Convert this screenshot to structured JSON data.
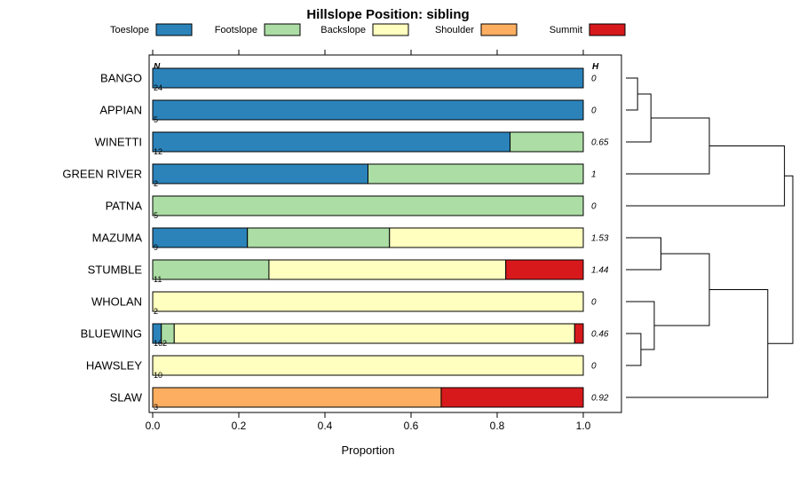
{
  "chart_data": {
    "type": "bar",
    "orientation": "horizontal",
    "stacked": true,
    "title": "Hillslope Position: sibling",
    "xlabel": "Proportion",
    "xlim": [
      0,
      1
    ],
    "xticks": [
      0,
      0.2,
      0.4,
      0.6,
      0.8,
      1.0
    ],
    "xtick_labels": [
      "0.0",
      "0.2",
      "0.4",
      "0.6",
      "0.8",
      "1.0"
    ],
    "grid": false,
    "legend_position": "top",
    "categories": [
      "Toeslope",
      "Footslope",
      "Backslope",
      "Shoulder",
      "Summit"
    ],
    "colors": [
      "#2B83BA",
      "#ABDDA4",
      "#FFFFBF",
      "#FDAE61",
      "#D7191C"
    ],
    "col_headers": {
      "left": "N",
      "right": "H"
    },
    "rows": [
      {
        "label": "BANGO",
        "n": 24,
        "h": "0",
        "proportions": [
          1,
          0,
          0,
          0,
          0
        ]
      },
      {
        "label": "APPIAN",
        "n": 5,
        "h": "0",
        "proportions": [
          1,
          0,
          0,
          0,
          0
        ]
      },
      {
        "label": "WINETTI",
        "n": 12,
        "h": "0.65",
        "proportions": [
          0.83,
          0.17,
          0,
          0,
          0
        ]
      },
      {
        "label": "GREEN RIVER",
        "n": 2,
        "h": "1",
        "proportions": [
          0.5,
          0.5,
          0,
          0,
          0
        ]
      },
      {
        "label": "PATNA",
        "n": 5,
        "h": "0",
        "proportions": [
          0,
          1,
          0,
          0,
          0
        ]
      },
      {
        "label": "MAZUMA",
        "n": 9,
        "h": "1.53",
        "proportions": [
          0.22,
          0.33,
          0.45,
          0,
          0
        ]
      },
      {
        "label": "STUMBLE",
        "n": 11,
        "h": "1.44",
        "proportions": [
          0,
          0.27,
          0.55,
          0,
          0.18
        ]
      },
      {
        "label": "WHOLAN",
        "n": 2,
        "h": "0",
        "proportions": [
          0,
          0,
          1,
          0,
          0
        ]
      },
      {
        "label": "BLUEWING",
        "n": 162,
        "h": "0.46",
        "proportions": [
          0.02,
          0.03,
          0.93,
          0,
          0.02
        ]
      },
      {
        "label": "HAWSLEY",
        "n": 10,
        "h": "0",
        "proportions": [
          0,
          0,
          1,
          0,
          0
        ]
      },
      {
        "label": "SLAW",
        "n": 3,
        "h": "0.92",
        "proportions": [
          0,
          0,
          0,
          0.67,
          0.33
        ]
      }
    ],
    "dendrogram": {
      "note": "right-side cluster tree; leaves L0-L10 are rows top to bottom, h is normalized merge distance 0-1",
      "merges": [
        {
          "a": "L0",
          "b": "L1",
          "h": 0.07
        },
        {
          "a": "M0",
          "b": "L2",
          "h": 0.15
        },
        {
          "a": "M1",
          "b": "L3",
          "h": 0.5
        },
        {
          "a": "M2",
          "b": "L4",
          "h": 0.95
        },
        {
          "a": "L5",
          "b": "L6",
          "h": 0.21
        },
        {
          "a": "L8",
          "b": "L9",
          "h": 0.09
        },
        {
          "a": "L7",
          "b": "M5",
          "h": 0.17
        },
        {
          "a": "M4",
          "b": "M6",
          "h": 0.5
        },
        {
          "a": "M7",
          "b": "L10",
          "h": 0.85
        },
        {
          "a": "M3",
          "b": "M8",
          "h": 1.0
        }
      ]
    }
  }
}
